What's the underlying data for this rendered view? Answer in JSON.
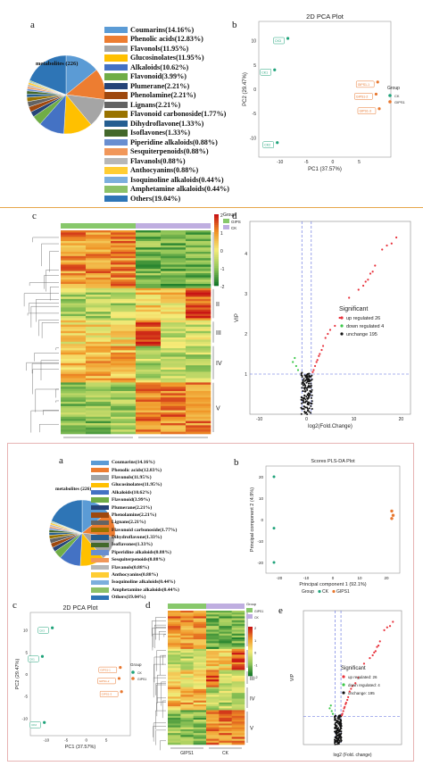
{
  "panel_labels": {
    "a": "a",
    "b": "b",
    "c": "c",
    "d": "d",
    "a2": "a",
    "b2": "b",
    "c2": "c",
    "d2": "d",
    "e2": "e"
  },
  "pie": {
    "center_label": "metabolites (226)",
    "slices": [
      {
        "label": "Coumarins(14.16%)",
        "value": 14.16,
        "color": "#5b9bd5"
      },
      {
        "label": "Phenolic acids(12.83%)",
        "value": 12.83,
        "color": "#ed7d31"
      },
      {
        "label": "Flavonols(11.95%)",
        "value": 11.95,
        "color": "#a5a5a5"
      },
      {
        "label": "Glucosinolates(11.95%)",
        "value": 11.95,
        "color": "#ffc000"
      },
      {
        "label": "Alkaloids(10.62%)",
        "value": 10.62,
        "color": "#4472c4"
      },
      {
        "label": "Flavonoid(3.99%)",
        "value": 3.99,
        "color": "#70ad47"
      },
      {
        "label": "Plumerane(2.21%)",
        "value": 2.21,
        "color": "#264478"
      },
      {
        "label": "Phenolamine(2.21%)",
        "value": 2.21,
        "color": "#9e480e"
      },
      {
        "label": "Lignans(2.21%)",
        "value": 2.21,
        "color": "#636363"
      },
      {
        "label": "Flavonoid carbonoside(1.77%)",
        "value": 1.77,
        "color": "#997300"
      },
      {
        "label": "Dihydroflavone(1.33%)",
        "value": 1.33,
        "color": "#255e91"
      },
      {
        "label": "Isoflavones(1.33%)",
        "value": 1.33,
        "color": "#43682b"
      },
      {
        "label": "Piperidine alkaloids(0.88%)",
        "value": 0.88,
        "color": "#698ed0"
      },
      {
        "label": "Sesquiterpenoids(0.88%)",
        "value": 0.88,
        "color": "#f1975a"
      },
      {
        "label": "Flavanols(0.88%)",
        "value": 0.88,
        "color": "#b7b7b7"
      },
      {
        "label": "Anthocyanins(0.88%)",
        "value": 0.88,
        "color": "#ffcd33"
      },
      {
        "label": "Isoquinoline alkaloids(0.44%)",
        "value": 0.44,
        "color": "#7cafdd"
      },
      {
        "label": "Amphetamine alkaloids(0.44%)",
        "value": 0.44,
        "color": "#8cc168"
      },
      {
        "label": "Others(19.04%)",
        "value": 19.04,
        "color": "#2e75b6"
      }
    ]
  },
  "pca": {
    "title": "2D PCA Plot",
    "xlabel": "PC1 (37.57%)",
    "ylabel": "PC2 (29.47%)",
    "xticks": [
      "-10",
      "-5",
      "0",
      "5"
    ],
    "yticks": [
      "10",
      "5",
      "0",
      "-5",
      "-10"
    ],
    "legend_title": "Group",
    "groups": [
      {
        "name": "CK",
        "color": "#1fa37a",
        "points": [
          {
            "x": -8.5,
            "y": 10.5,
            "label": "CK3"
          },
          {
            "x": -11,
            "y": 4,
            "label": "CK1"
          },
          {
            "x": -10.5,
            "y": -11,
            "label": "CK2"
          }
        ]
      },
      {
        "name": "GIPS1",
        "color": "#e8772e",
        "points": [
          {
            "x": 8.5,
            "y": 1.5,
            "label": "GIPS1-1"
          },
          {
            "x": 8.2,
            "y": -1,
            "label": "GIPS1-2"
          },
          {
            "x": 8.8,
            "y": -4,
            "label": "GIPS1-3"
          }
        ]
      }
    ]
  },
  "heatmap": {
    "legend_title": "Group",
    "groups": [
      {
        "name": "GIPS1",
        "color": "#88c86b"
      },
      {
        "name": "CK",
        "color": "#bfaee0"
      }
    ],
    "scale_ticks": [
      "2",
      "1",
      "0",
      "-1",
      "-2"
    ],
    "clusters": [
      "I",
      "II",
      "III",
      "IV",
      "V"
    ],
    "col_labels": [
      "GIPS1",
      "CK"
    ]
  },
  "volcano": {
    "xlabel": "log2(Fold.Change)",
    "ylabel": "VIP",
    "xticks": [
      "-10",
      "0",
      "10",
      "20"
    ],
    "yticks": [
      "1",
      "2",
      "3",
      "4"
    ],
    "legend_title": "Significant",
    "legend": [
      {
        "label": "up regulated 26",
        "color": "#e8323c"
      },
      {
        "label": "down regulated 4",
        "color": "#3cc84a"
      },
      {
        "label": "unchange 195",
        "color": "#111111"
      }
    ]
  },
  "plsda": {
    "title": "Scores PLS-DA Plot",
    "xlabel": "Principal component 1 (92.1%)",
    "ylabel": "Principal component 2 (4.9%)",
    "xticks": [
      "-20",
      "-10",
      "0",
      "10",
      "20"
    ],
    "yticks": [
      "20",
      "10",
      "0",
      "-10",
      "-20"
    ],
    "legend_group": "Group",
    "legend_items": [
      {
        "label": "CK",
        "color": "#1fa37a"
      },
      {
        "label": "GIPS1",
        "color": "#e8772e"
      }
    ]
  },
  "volcano2": {
    "legend_title": "Significant",
    "legend": [
      {
        "label": "up regulated: 26",
        "color": "#e8323c"
      },
      {
        "label": "down regulated: 4",
        "color": "#3cc84a"
      },
      {
        "label": "unchange: 195",
        "color": "#111111"
      }
    ],
    "xlabel": "log2 (Fold. change)",
    "ylabel": "VIP"
  }
}
